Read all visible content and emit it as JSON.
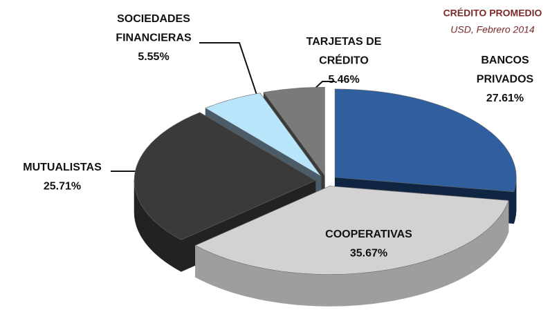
{
  "chart_data": {
    "type": "pie3d",
    "title": "CRÉDITO PROMEDIO",
    "subtitle": "USD, Febrero 2014",
    "categories": [
      [
        "BANCOS",
        "PRIVADOS"
      ],
      [
        "COOPERATIVAS"
      ],
      [
        "MUTUALISTAS"
      ],
      [
        "SOCIEDADES",
        "FINANCIERAS"
      ],
      [
        "TARJETAS DE",
        "CRÉDITO"
      ]
    ],
    "values": [
      27.61,
      35.67,
      25.71,
      5.55,
      5.46
    ],
    "value_labels": [
      "27.61%",
      "35.67%",
      "25.71%",
      "5.55%",
      "5.46%"
    ],
    "colors": [
      "#2f5f9e",
      "#d2d2d2",
      "#3a3a3a",
      "#b9e5fb",
      "#7a7a7a"
    ],
    "side_colors": [
      "#0f2542",
      "#9e9e9e",
      "#222222",
      "#4b5c68",
      "#3a3a3a"
    ]
  }
}
